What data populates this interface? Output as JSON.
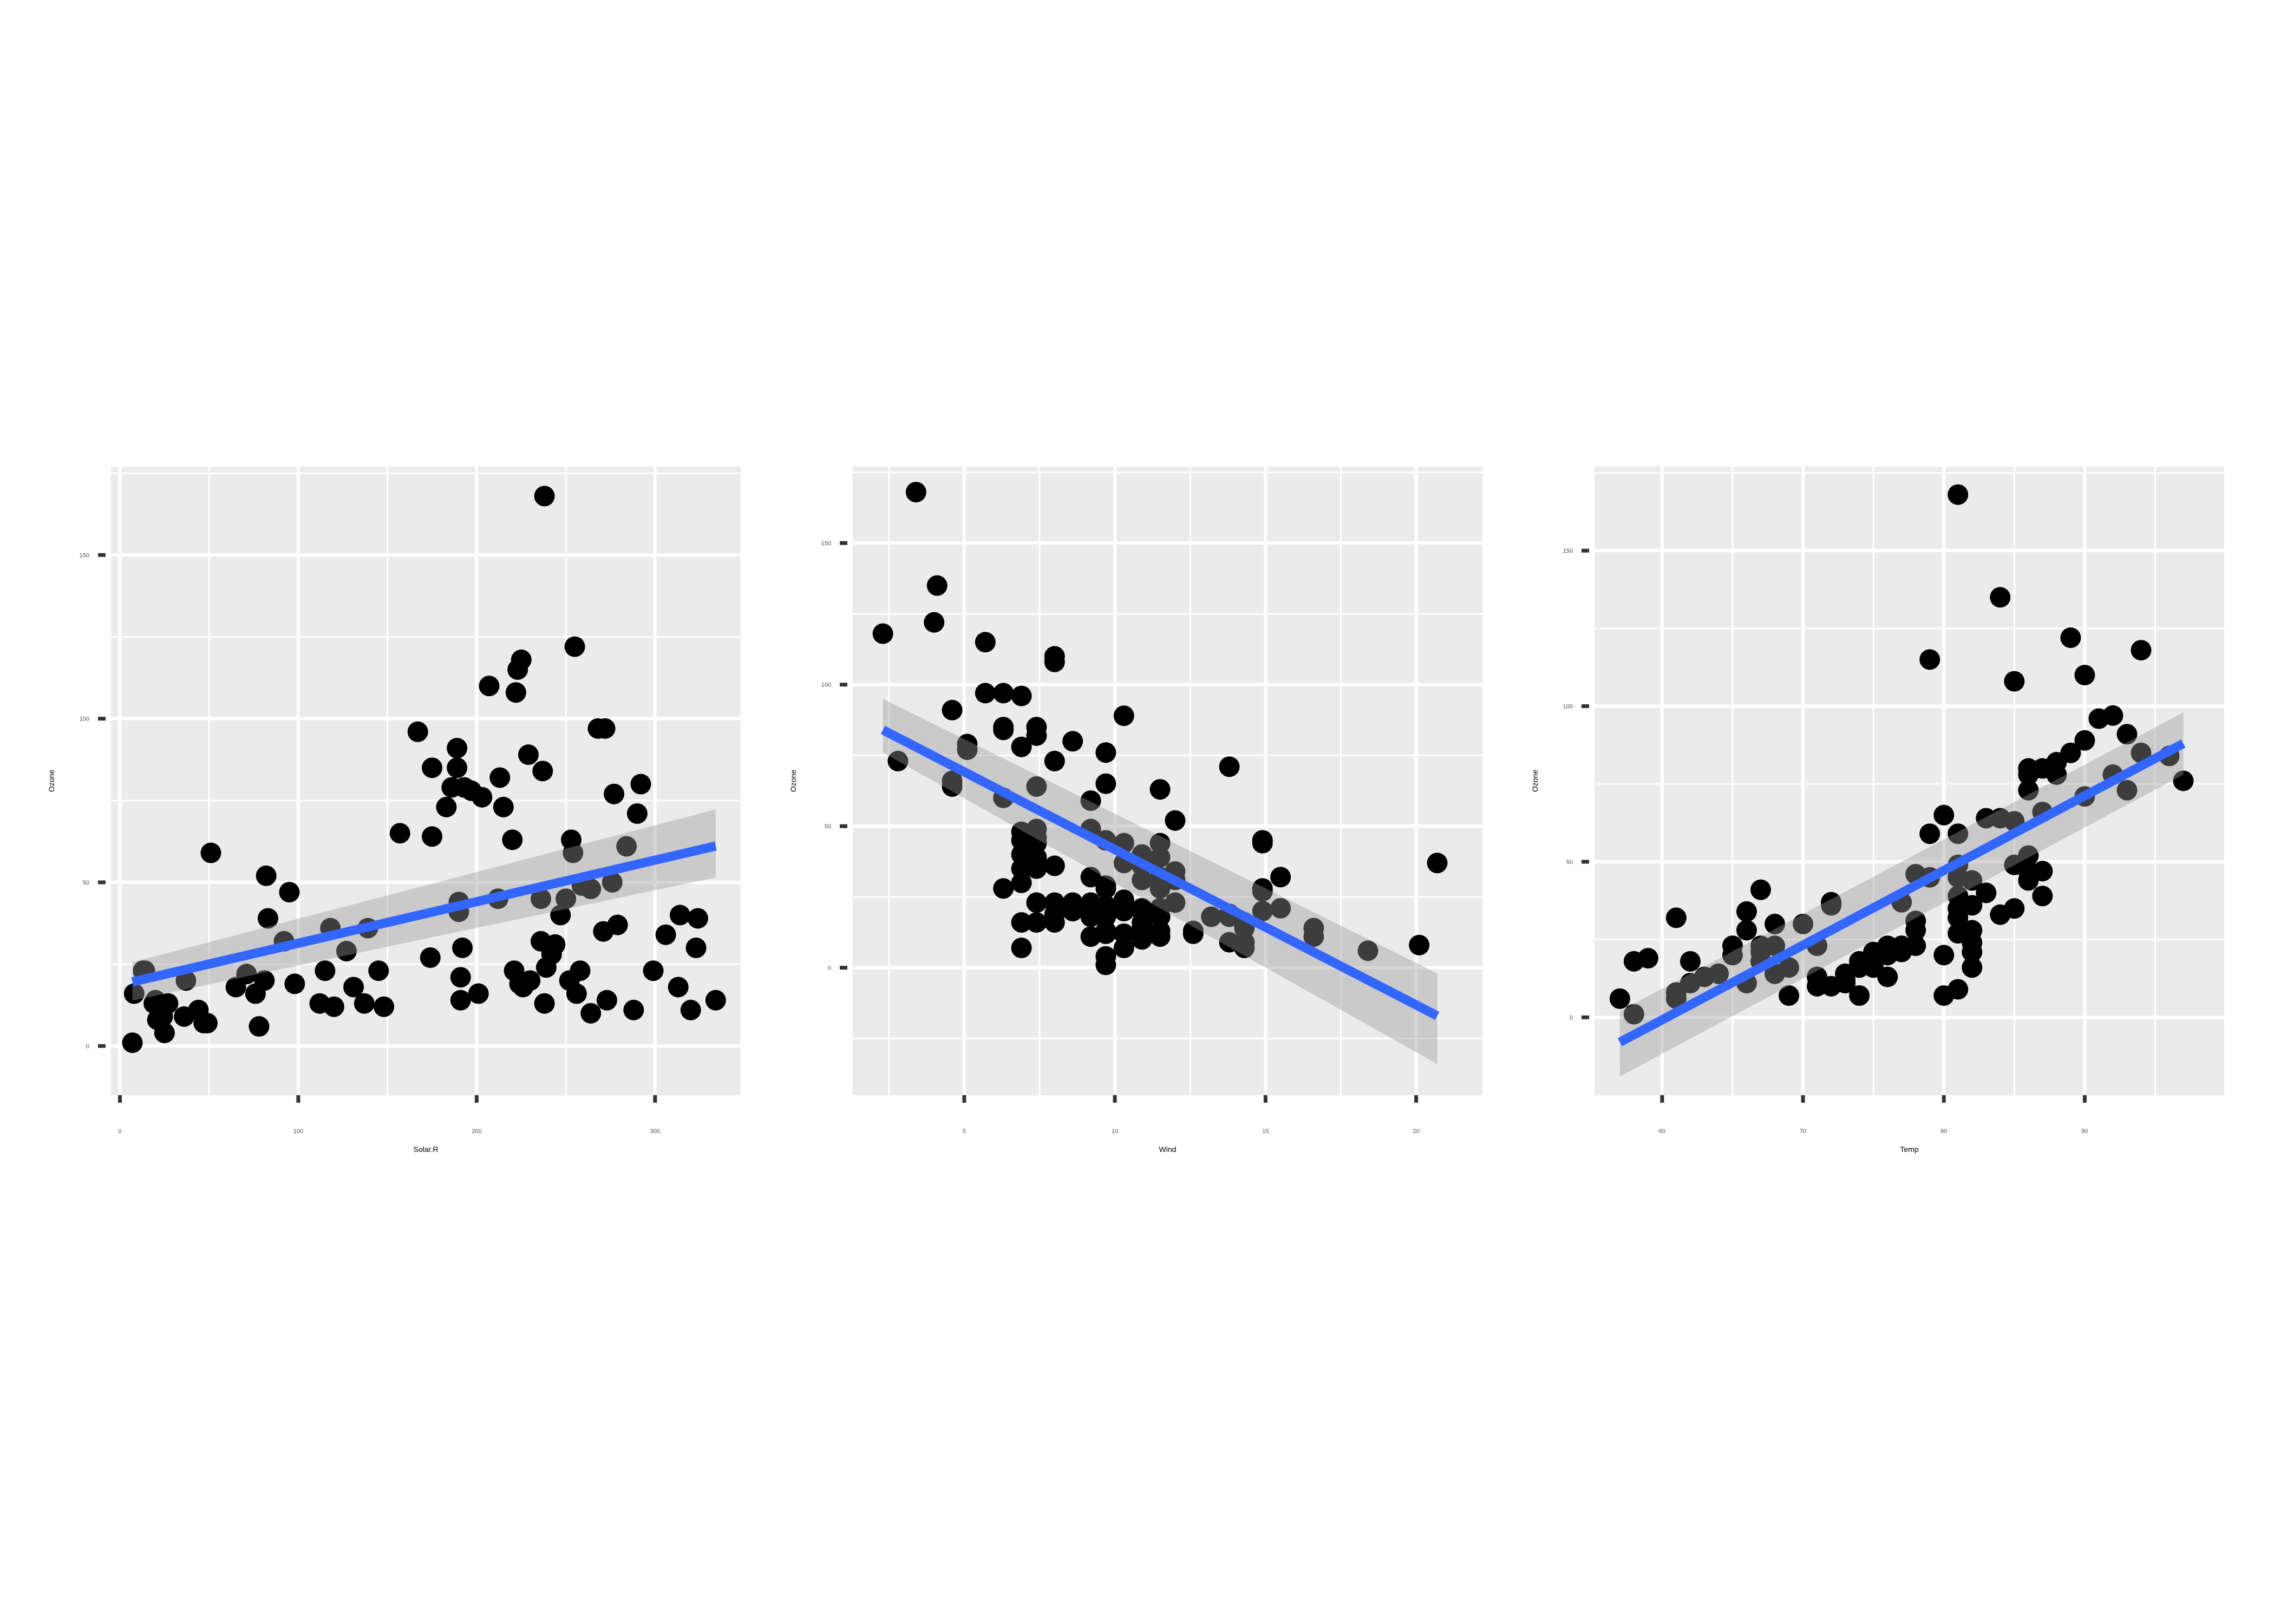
{
  "colors": {
    "panel_background": "#ebebeb",
    "grid": "#ffffff",
    "points": "#000000",
    "fit_line": "#3366ff",
    "confidence_band": "#999999",
    "tick_label": "#4d4d4d",
    "tick_mark": "#333333"
  },
  "chart_data": [
    {
      "type": "scatter",
      "title": "",
      "xlabel": "Solar.R",
      "ylabel": "Ozone",
      "xlim": [
        -5,
        348
      ],
      "ylim": [
        -15,
        177
      ],
      "xticks": [
        0,
        100,
        200,
        300
      ],
      "xtick_labels": [
        "0",
        "100",
        "200",
        "300"
      ],
      "yticks": [
        0,
        50,
        100,
        150
      ],
      "ytick_labels": [
        "0",
        "50",
        "100",
        "150"
      ],
      "grid": true,
      "legend": "none",
      "fit": {
        "method": "lm",
        "x": [
          7,
          334
        ],
        "y": [
          19.6,
          61.1
        ],
        "se_low": [
          13.9,
          51.5
        ],
        "se_high": [
          25.6,
          72.3
        ]
      },
      "points": [
        [
          7,
          1
        ],
        [
          8,
          16
        ],
        [
          13,
          23
        ],
        [
          14,
          23
        ],
        [
          19,
          13
        ],
        [
          20,
          14
        ],
        [
          21,
          8
        ],
        [
          24,
          9
        ],
        [
          25,
          4
        ],
        [
          27,
          13
        ],
        [
          36,
          9
        ],
        [
          37,
          20
        ],
        [
          44,
          11
        ],
        [
          47,
          7
        ],
        [
          49,
          7
        ],
        [
          51,
          59
        ],
        [
          65,
          18
        ],
        [
          71,
          22
        ],
        [
          76,
          16
        ],
        [
          78,
          6
        ],
        [
          81,
          20
        ],
        [
          82,
          52
        ],
        [
          83,
          39
        ],
        [
          92,
          32
        ],
        [
          95,
          47
        ],
        [
          98,
          19
        ],
        [
          112,
          13
        ],
        [
          115,
          23
        ],
        [
          118,
          36
        ],
        [
          120,
          12
        ],
        [
          127,
          29
        ],
        [
          131,
          18
        ],
        [
          137,
          13
        ],
        [
          139,
          36
        ],
        [
          145,
          23
        ],
        [
          148,
          12
        ],
        [
          157,
          65
        ],
        [
          167,
          96
        ],
        [
          174,
          27
        ],
        [
          175,
          85
        ],
        [
          175,
          64
        ],
        [
          183,
          73
        ],
        [
          186,
          79
        ],
        [
          189,
          91
        ],
        [
          189,
          85
        ],
        [
          190,
          44
        ],
        [
          190,
          41
        ],
        [
          191,
          21
        ],
        [
          191,
          14
        ],
        [
          192,
          30
        ],
        [
          193,
          79
        ],
        [
          197,
          78
        ],
        [
          201,
          16
        ],
        [
          203,
          76
        ],
        [
          207,
          110
        ],
        [
          212,
          45
        ],
        [
          213,
          82
        ],
        [
          215,
          73
        ],
        [
          220,
          63
        ],
        [
          221,
          23
        ],
        [
          222,
          108
        ],
        [
          223,
          115
        ],
        [
          224,
          19
        ],
        [
          225,
          118
        ],
        [
          226,
          18
        ],
        [
          229,
          89
        ],
        [
          230,
          20
        ],
        [
          236,
          45
        ],
        [
          236,
          32
        ],
        [
          237,
          84
        ],
        [
          238,
          168
        ],
        [
          238,
          13
        ],
        [
          239,
          24
        ],
        [
          242,
          28
        ],
        [
          244,
          31
        ],
        [
          247,
          40
        ],
        [
          250,
          45
        ],
        [
          252,
          20
        ],
        [
          253,
          63
        ],
        [
          254,
          59
        ],
        [
          255,
          122
        ],
        [
          256,
          16
        ],
        [
          258,
          23
        ],
        [
          259,
          49
        ],
        [
          264,
          10
        ],
        [
          264,
          48
        ],
        [
          268,
          97
        ],
        [
          271,
          35
        ],
        [
          272,
          97
        ],
        [
          273,
          14
        ],
        [
          276,
          50
        ],
        [
          277,
          77
        ],
        [
          279,
          37
        ],
        [
          284,
          61
        ],
        [
          288,
          11
        ],
        [
          290,
          71
        ],
        [
          292,
          80
        ],
        [
          299,
          23
        ],
        [
          306,
          34
        ],
        [
          313,
          18
        ],
        [
          314,
          40
        ],
        [
          320,
          11
        ],
        [
          323,
          30
        ],
        [
          324,
          39
        ],
        [
          334,
          14
        ]
      ]
    },
    {
      "type": "scatter",
      "title": "",
      "xlabel": "Wind",
      "ylabel": "Ozone",
      "xlim": [
        1.3,
        22.2
      ],
      "ylim": [
        -45,
        177
      ],
      "xticks": [
        5,
        10,
        15,
        20
      ],
      "xtick_labels": [
        "5",
        "10",
        "15",
        "20"
      ],
      "yticks": [
        0,
        50,
        100,
        150
      ],
      "ytick_labels": [
        "0",
        "50",
        "100",
        "150"
      ],
      "grid": true,
      "legend": "none",
      "fit": {
        "method": "lm",
        "x": [
          2.3,
          20.7
        ],
        "y": [
          84,
          -17
        ],
        "se_low": [
          76,
          -34
        ],
        "se_high": [
          95,
          -2
        ]
      },
      "points": [
        [
          2.3,
          118
        ],
        [
          2.8,
          73
        ],
        [
          3.4,
          168
        ],
        [
          4.0,
          122
        ],
        [
          4.1,
          135
        ],
        [
          4.6,
          91
        ],
        [
          4.6,
          66
        ],
        [
          4.6,
          64
        ],
        [
          5.1,
          79
        ],
        [
          5.1,
          77
        ],
        [
          5.7,
          115
        ],
        [
          5.7,
          97
        ],
        [
          6.3,
          85
        ],
        [
          6.3,
          84
        ],
        [
          6.3,
          97
        ],
        [
          6.3,
          60
        ],
        [
          6.3,
          28
        ],
        [
          6.9,
          96
        ],
        [
          6.9,
          78
        ],
        [
          6.9,
          48
        ],
        [
          6.9,
          45
        ],
        [
          6.9,
          40
        ],
        [
          6.9,
          35
        ],
        [
          6.9,
          30
        ],
        [
          6.9,
          16
        ],
        [
          6.9,
          7
        ],
        [
          7.4,
          85
        ],
        [
          7.4,
          82
        ],
        [
          7.4,
          64
        ],
        [
          7.4,
          49
        ],
        [
          7.4,
          46
        ],
        [
          7.4,
          44
        ],
        [
          7.4,
          39
        ],
        [
          7.4,
          35
        ],
        [
          7.4,
          23
        ],
        [
          7.4,
          16
        ],
        [
          8.0,
          110
        ],
        [
          8.0,
          108
        ],
        [
          8.0,
          73
        ],
        [
          8.0,
          36
        ],
        [
          8.0,
          23
        ],
        [
          8.0,
          19
        ],
        [
          8.0,
          16
        ],
        [
          8.6,
          80
        ],
        [
          8.6,
          23
        ],
        [
          8.6,
          20
        ],
        [
          9.2,
          59
        ],
        [
          9.2,
          49
        ],
        [
          9.2,
          32
        ],
        [
          9.2,
          23
        ],
        [
          9.2,
          21
        ],
        [
          9.2,
          18
        ],
        [
          9.2,
          11
        ],
        [
          9.7,
          76
        ],
        [
          9.7,
          65
        ],
        [
          9.7,
          45
        ],
        [
          9.7,
          29
        ],
        [
          9.7,
          28
        ],
        [
          9.7,
          22
        ],
        [
          9.7,
          18
        ],
        [
          9.7,
          13
        ],
        [
          9.7,
          12
        ],
        [
          9.7,
          4
        ],
        [
          9.7,
          1
        ],
        [
          10.3,
          89
        ],
        [
          10.3,
          44
        ],
        [
          10.3,
          37
        ],
        [
          10.3,
          24
        ],
        [
          10.3,
          23
        ],
        [
          10.3,
          20
        ],
        [
          10.3,
          12
        ],
        [
          10.3,
          7
        ],
        [
          10.9,
          40
        ],
        [
          10.9,
          36
        ],
        [
          10.9,
          31
        ],
        [
          10.9,
          21
        ],
        [
          10.9,
          20
        ],
        [
          10.9,
          16
        ],
        [
          10.9,
          14
        ],
        [
          10.9,
          10
        ],
        [
          11.5,
          63
        ],
        [
          11.5,
          44
        ],
        [
          11.5,
          39
        ],
        [
          11.5,
          32
        ],
        [
          11.5,
          28
        ],
        [
          11.5,
          21
        ],
        [
          11.5,
          18
        ],
        [
          11.5,
          13
        ],
        [
          11.5,
          11
        ],
        [
          12.0,
          52
        ],
        [
          12.0,
          34
        ],
        [
          12.0,
          31
        ],
        [
          12.0,
          23
        ],
        [
          12.6,
          13
        ],
        [
          12.6,
          12
        ],
        [
          13.2,
          18
        ],
        [
          13.8,
          71
        ],
        [
          13.8,
          19
        ],
        [
          13.8,
          18
        ],
        [
          13.8,
          9
        ],
        [
          14.3,
          16
        ],
        [
          14.3,
          14
        ],
        [
          14.3,
          9
        ],
        [
          14.3,
          7
        ],
        [
          14.9,
          45
        ],
        [
          14.9,
          44
        ],
        [
          14.9,
          28
        ],
        [
          14.9,
          27
        ],
        [
          14.9,
          20
        ],
        [
          15.5,
          32
        ],
        [
          15.5,
          21
        ],
        [
          16.6,
          14
        ],
        [
          16.6,
          11
        ],
        [
          18.4,
          6
        ],
        [
          20.1,
          8
        ],
        [
          20.7,
          37
        ]
      ]
    },
    {
      "type": "scatter",
      "title": "",
      "xlabel": "Temp",
      "ylabel": "Ozone",
      "xlim": [
        55.2,
        99.9
      ],
      "ylim": [
        -25,
        177
      ],
      "xticks": [
        60,
        70,
        80,
        90
      ],
      "xtick_labels": [
        "60",
        "70",
        "80",
        "90"
      ],
      "yticks": [
        0,
        50,
        100,
        150
      ],
      "ytick_labels": [
        "0",
        "50",
        "100",
        "150"
      ],
      "grid": true,
      "legend": "none",
      "fit": {
        "method": "lm",
        "x": [
          57,
          97
        ],
        "y": [
          -8,
          88
        ],
        "se_low": [
          -19,
          78
        ],
        "se_high": [
          2,
          98
        ]
      },
      "points": [
        [
          57,
          6
        ],
        [
          58,
          1
        ],
        [
          58,
          18
        ],
        [
          59,
          19
        ],
        [
          61,
          8
        ],
        [
          61,
          6
        ],
        [
          61,
          32
        ],
        [
          62,
          18
        ],
        [
          62,
          11
        ],
        [
          63,
          13
        ],
        [
          64,
          14
        ],
        [
          64,
          14
        ],
        [
          65,
          23
        ],
        [
          65,
          20
        ],
        [
          66,
          34
        ],
        [
          66,
          28
        ],
        [
          66,
          11
        ],
        [
          67,
          41
        ],
        [
          67,
          23
        ],
        [
          67,
          21
        ],
        [
          67,
          18
        ],
        [
          68,
          30
        ],
        [
          68,
          23
        ],
        [
          68,
          14
        ],
        [
          69,
          16
        ],
        [
          69,
          7
        ],
        [
          70,
          30
        ],
        [
          71,
          23
        ],
        [
          71,
          13
        ],
        [
          71,
          10
        ],
        [
          72,
          37
        ],
        [
          72,
          36
        ],
        [
          72,
          10
        ],
        [
          73,
          14
        ],
        [
          73,
          12
        ],
        [
          73,
          11
        ],
        [
          74,
          18
        ],
        [
          74,
          16
        ],
        [
          74,
          7
        ],
        [
          75,
          21
        ],
        [
          75,
          16
        ],
        [
          76,
          23
        ],
        [
          76,
          22
        ],
        [
          76,
          20
        ],
        [
          76,
          13
        ],
        [
          77,
          37
        ],
        [
          77,
          23
        ],
        [
          77,
          21
        ],
        [
          78,
          46
        ],
        [
          78,
          31
        ],
        [
          78,
          28
        ],
        [
          78,
          23
        ],
        [
          79,
          115
        ],
        [
          79,
          59
        ],
        [
          79,
          45
        ],
        [
          80,
          65
        ],
        [
          80,
          20
        ],
        [
          80,
          7
        ],
        [
          81,
          168
        ],
        [
          81,
          59
        ],
        [
          81,
          49
        ],
        [
          81,
          45
        ],
        [
          81,
          39
        ],
        [
          81,
          35
        ],
        [
          81,
          32
        ],
        [
          81,
          27
        ],
        [
          81,
          9
        ],
        [
          82,
          44
        ],
        [
          82,
          36
        ],
        [
          82,
          28
        ],
        [
          82,
          24
        ],
        [
          82,
          21
        ],
        [
          82,
          16
        ],
        [
          83,
          64
        ],
        [
          83,
          40
        ],
        [
          84,
          135
        ],
        [
          84,
          64
        ],
        [
          84,
          33
        ],
        [
          85,
          108
        ],
        [
          85,
          63
        ],
        [
          85,
          49
        ],
        [
          85,
          35
        ],
        [
          86,
          80
        ],
        [
          86,
          78
        ],
        [
          86,
          73
        ],
        [
          86,
          52
        ],
        [
          86,
          47
        ],
        [
          86,
          44
        ],
        [
          87,
          80
        ],
        [
          87,
          66
        ],
        [
          87,
          47
        ],
        [
          87,
          39
        ],
        [
          88,
          82
        ],
        [
          88,
          78
        ],
        [
          89,
          122
        ],
        [
          89,
          85
        ],
        [
          90,
          110
        ],
        [
          90,
          89
        ],
        [
          90,
          71
        ],
        [
          91,
          96
        ],
        [
          92,
          97
        ],
        [
          92,
          78
        ],
        [
          93,
          91
        ],
        [
          93,
          73
        ],
        [
          94,
          118
        ],
        [
          94,
          85
        ],
        [
          96,
          84
        ],
        [
          97,
          76
        ]
      ]
    }
  ]
}
